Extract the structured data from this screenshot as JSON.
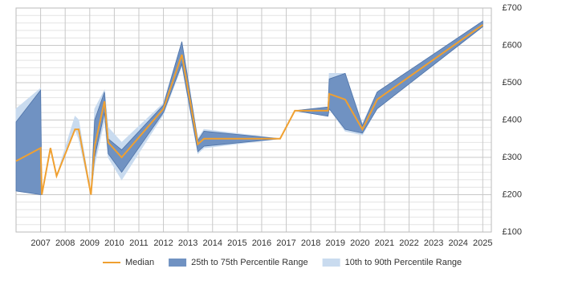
{
  "chart_data": {
    "type": "band_line",
    "x": [
      2006,
      2007,
      2007.05,
      2007.4,
      2007.65,
      2008.4,
      2008.55,
      2009.05,
      2009.2,
      2009.6,
      2009.75,
      2010.3,
      2012,
      2012.75,
      2013.4,
      2013.65,
      2016.75,
      2017.35,
      2018.7,
      2018.75,
      2019.4,
      2020.1,
      2020.7,
      2025
    ],
    "series": [
      {
        "name": "10th to 90th Percentile Range",
        "color": "#c9dbef",
        "low": [
          210,
          200,
          200,
          325,
          250,
          375,
          350,
          200,
          280,
          400,
          300,
          240,
          415,
          545,
          310,
          325,
          350,
          425,
          410,
          430,
          370,
          360,
          430,
          650
        ],
        "high": [
          430,
          485,
          200,
          325,
          250,
          410,
          400,
          200,
          430,
          480,
          380,
          340,
          445,
          610,
          350,
          375,
          350,
          425,
          435,
          525,
          525,
          390,
          475,
          665
        ]
      },
      {
        "name": "25th to 75th Percentile Range",
        "color": "#7092c2",
        "low": [
          210,
          200,
          200,
          325,
          250,
          375,
          375,
          200,
          300,
          420,
          310,
          260,
          420,
          550,
          315,
          330,
          350,
          425,
          410,
          430,
          375,
          365,
          430,
          650
        ],
        "high": [
          395,
          480,
          200,
          325,
          250,
          375,
          375,
          200,
          400,
          475,
          350,
          320,
          440,
          610,
          345,
          370,
          350,
          425,
          435,
          510,
          525,
          385,
          475,
          665
        ]
      },
      {
        "name": "Median",
        "color": "#f0a030",
        "values": [
          290,
          325,
          200,
          325,
          250,
          375,
          375,
          200,
          330,
          450,
          340,
          300,
          430,
          575,
          335,
          350,
          350,
          425,
          425,
          470,
          455,
          375,
          455,
          655
        ]
      }
    ],
    "xlim": [
      2006,
      2025.35
    ],
    "xticks": [
      2007,
      2008,
      2009,
      2010,
      2011,
      2012,
      2013,
      2014,
      2015,
      2016,
      2017,
      2018,
      2019,
      2020,
      2021,
      2022,
      2023,
      2024,
      2025
    ],
    "ylim": [
      100,
      700
    ],
    "yticks": [
      {
        "value": 100,
        "label": "£100"
      },
      {
        "value": 200,
        "label": "£200"
      },
      {
        "value": 300,
        "label": "£300"
      },
      {
        "value": 400,
        "label": "£400"
      },
      {
        "value": 500,
        "label": "£500"
      },
      {
        "value": 600,
        "label": "£600"
      },
      {
        "value": 700,
        "label": "£700"
      }
    ],
    "y_minor_ticks": [
      120,
      140,
      160,
      180,
      220,
      240,
      260,
      280,
      320,
      340,
      360,
      380,
      420,
      440,
      460,
      480,
      520,
      540,
      560,
      580,
      620,
      640,
      660,
      680
    ],
    "y_axis_side": "right",
    "grid": true,
    "legend": "bottom"
  }
}
